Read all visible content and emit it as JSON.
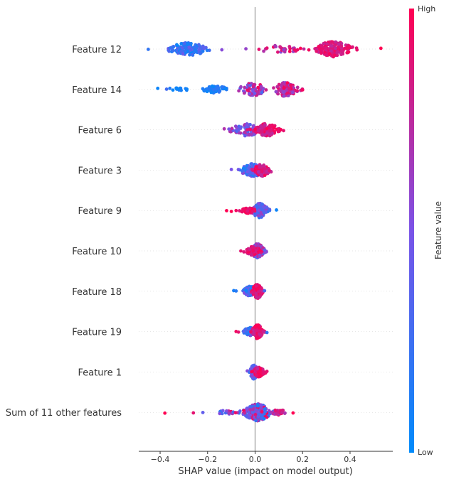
{
  "chart_data": {
    "type": "scatter",
    "subtype": "beeswarm",
    "xlabel": "SHAP value (impact on model output)",
    "xlim": [
      -0.49,
      0.58
    ],
    "x_ticks": [
      -0.4,
      -0.2,
      0.0,
      0.2,
      0.4
    ],
    "x_tick_labels": [
      "−0.4",
      "−0.2",
      "0.0",
      "0.2",
      "0.4"
    ],
    "zero_line": 0.0,
    "features": [
      {
        "name": "Feature 12",
        "clusters": [
          {
            "center": -0.28,
            "spread": 0.075,
            "count": 120,
            "val_lo": 0.0,
            "val_hi": 0.45,
            "band": 9
          },
          {
            "center": 0.1,
            "spread": 0.11,
            "count": 30,
            "val_lo": 0.55,
            "val_hi": 1.0,
            "band": 5
          },
          {
            "center": 0.33,
            "spread": 0.065,
            "count": 170,
            "val_lo": 0.75,
            "val_hi": 1.0,
            "band": 11
          }
        ],
        "outliers": [
          [
            -0.45,
            0.2
          ],
          [
            0.53,
            1.0
          ],
          [
            -0.14,
            0.55
          ],
          [
            0.05,
            0.9
          ],
          [
            0.12,
            0.6
          ]
        ]
      },
      {
        "name": "Feature 14",
        "clusters": [
          {
            "center": -0.17,
            "spread": 0.05,
            "count": 60,
            "val_lo": 0.0,
            "val_hi": 0.2,
            "band": 5
          },
          {
            "center": -0.33,
            "spread": 0.05,
            "count": 14,
            "val_lo": 0.0,
            "val_hi": 0.3,
            "band": 2
          },
          {
            "center": -0.01,
            "spread": 0.05,
            "count": 60,
            "val_lo": 0.3,
            "val_hi": 1.0,
            "band": 9
          },
          {
            "center": 0.13,
            "spread": 0.045,
            "count": 110,
            "val_lo": 0.55,
            "val_hi": 1.0,
            "band": 10
          }
        ],
        "outliers": [
          [
            -0.41,
            0.05
          ],
          [
            0.2,
            0.95
          ]
        ]
      },
      {
        "name": "Feature 6",
        "clusters": [
          {
            "center": -0.04,
            "spread": 0.06,
            "count": 90,
            "val_lo": 0.15,
            "val_hi": 0.75,
            "band": 9
          },
          {
            "center": 0.05,
            "spread": 0.045,
            "count": 110,
            "val_lo": 0.75,
            "val_hi": 1.0,
            "band": 9
          }
        ],
        "outliers": [
          [
            -0.13,
            0.7
          ],
          [
            0.12,
            0.9
          ]
        ]
      },
      {
        "name": "Feature 3",
        "clusters": [
          {
            "center": -0.01,
            "spread": 0.045,
            "count": 110,
            "val_lo": 0.05,
            "val_hi": 0.6,
            "band": 9
          },
          {
            "center": 0.03,
            "spread": 0.03,
            "count": 70,
            "val_lo": 0.7,
            "val_hi": 1.0,
            "band": 9
          }
        ],
        "outliers": [
          [
            -0.1,
            0.5
          ],
          [
            0.06,
            0.9
          ]
        ]
      },
      {
        "name": "Feature 9",
        "clusters": [
          {
            "center": 0.02,
            "spread": 0.03,
            "count": 140,
            "val_lo": 0.1,
            "val_hi": 0.7,
            "band": 10
          },
          {
            "center": -0.03,
            "spread": 0.03,
            "count": 60,
            "val_lo": 0.85,
            "val_hi": 1.0,
            "band": 4
          }
        ],
        "outliers": [
          [
            -0.12,
            1.0
          ],
          [
            -0.1,
            1.0
          ],
          [
            -0.08,
            0.95
          ],
          [
            0.09,
            0.05
          ],
          [
            0.06,
            0.3
          ]
        ]
      },
      {
        "name": "Feature 10",
        "clusters": [
          {
            "center": 0.01,
            "spread": 0.025,
            "count": 160,
            "val_lo": 0.25,
            "val_hi": 0.8,
            "band": 10
          },
          {
            "center": -0.01,
            "spread": 0.03,
            "count": 60,
            "val_lo": 0.8,
            "val_hi": 1.0,
            "band": 6
          }
        ],
        "outliers": [
          [
            -0.06,
            0.9
          ],
          [
            0.04,
            0.4
          ]
        ]
      },
      {
        "name": "Feature 18",
        "clusters": [
          {
            "center": -0.02,
            "spread": 0.025,
            "count": 90,
            "val_lo": 0.05,
            "val_hi": 0.55,
            "band": 7
          },
          {
            "center": 0.01,
            "spread": 0.02,
            "count": 110,
            "val_lo": 0.75,
            "val_hi": 1.0,
            "band": 10
          }
        ],
        "outliers": [
          [
            -0.09,
            0.1
          ],
          [
            -0.08,
            0.15
          ],
          [
            0.04,
            0.3
          ]
        ]
      },
      {
        "name": "Feature 19",
        "clusters": [
          {
            "center": -0.02,
            "spread": 0.025,
            "count": 90,
            "val_lo": 0.05,
            "val_hi": 0.6,
            "band": 6
          },
          {
            "center": 0.01,
            "spread": 0.02,
            "count": 110,
            "val_lo": 0.75,
            "val_hi": 1.0,
            "band": 10
          }
        ],
        "outliers": [
          [
            -0.08,
            0.95
          ],
          [
            -0.07,
            0.9
          ],
          [
            0.05,
            0.2
          ]
        ]
      },
      {
        "name": "Feature 1",
        "clusters": [
          {
            "center": -0.005,
            "spread": 0.015,
            "count": 130,
            "val_lo": 0.15,
            "val_hi": 0.6,
            "band": 10
          },
          {
            "center": 0.015,
            "spread": 0.02,
            "count": 90,
            "val_lo": 0.75,
            "val_hi": 1.0,
            "band": 7
          }
        ],
        "outliers": [
          [
            0.05,
            0.9
          ]
        ]
      },
      {
        "name": "Sum of 11 other features",
        "clusters": [
          {
            "center": 0.01,
            "spread": 0.05,
            "count": 220,
            "val_lo": 0.1,
            "val_hi": 1.0,
            "band": 12
          },
          {
            "center": 0.1,
            "spread": 0.03,
            "count": 30,
            "val_lo": 0.5,
            "val_hi": 1.0,
            "band": 4
          },
          {
            "center": -0.12,
            "spread": 0.04,
            "count": 20,
            "val_lo": 0.1,
            "val_hi": 1.0,
            "band": 3
          }
        ],
        "outliers": [
          [
            -0.38,
            1.0
          ],
          [
            -0.26,
            0.9
          ],
          [
            -0.22,
            0.4
          ],
          [
            0.16,
            1.0
          ]
        ]
      }
    ],
    "colorbar": {
      "label": "Feature value",
      "high_label": "High",
      "low_label": "Low",
      "low_color": "#008bfb",
      "high_color": "#ff0052"
    },
    "zero_line_color": "#999999",
    "grid_line_color": "#cccccc"
  }
}
